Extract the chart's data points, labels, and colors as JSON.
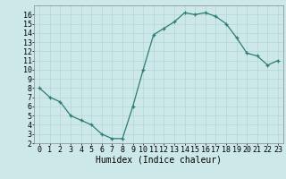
{
  "x": [
    0,
    1,
    2,
    3,
    4,
    5,
    6,
    7,
    8,
    9,
    10,
    11,
    12,
    13,
    14,
    15,
    16,
    17,
    18,
    19,
    20,
    21,
    22,
    23
  ],
  "y": [
    8,
    7,
    6.5,
    5,
    4.5,
    4,
    3,
    2.5,
    2.5,
    6,
    10,
    13.8,
    14.5,
    15.2,
    16.2,
    16,
    16.2,
    15.8,
    15,
    13.5,
    11.8,
    11.5,
    10.5,
    11
  ],
  "line_color": "#2e7d6e",
  "marker": "+",
  "bg_color": "#cce8e8",
  "grid_color": "#b8d8d8",
  "xlabel": "Humidex (Indice chaleur)",
  "xlim": [
    -0.5,
    23.5
  ],
  "ylim": [
    2,
    17
  ],
  "yticks": [
    2,
    3,
    4,
    5,
    6,
    7,
    8,
    9,
    10,
    11,
    12,
    13,
    14,
    15,
    16
  ],
  "xticks": [
    0,
    1,
    2,
    3,
    4,
    5,
    6,
    7,
    8,
    9,
    10,
    11,
    12,
    13,
    14,
    15,
    16,
    17,
    18,
    19,
    20,
    21,
    22,
    23
  ],
  "tick_fontsize": 6,
  "xlabel_fontsize": 7,
  "marker_size": 3,
  "line_width": 0.9
}
